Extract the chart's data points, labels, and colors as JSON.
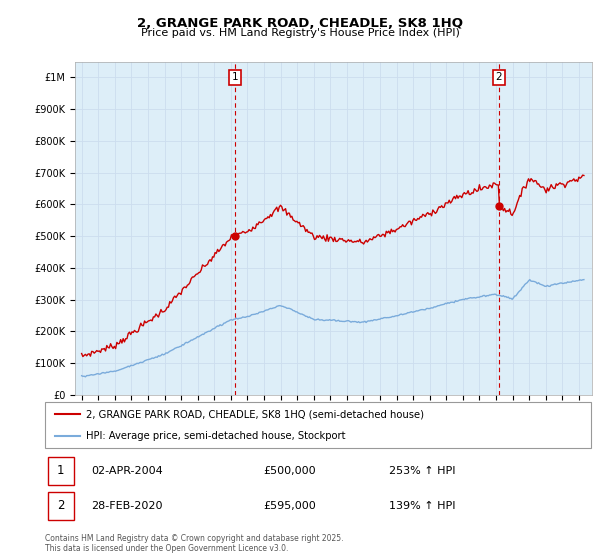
{
  "title": "2, GRANGE PARK ROAD, CHEADLE, SK8 1HQ",
  "subtitle": "Price paid vs. HM Land Registry's House Price Index (HPI)",
  "ytick_values": [
    0,
    100000,
    200000,
    300000,
    400000,
    500000,
    600000,
    700000,
    800000,
    900000,
    1000000
  ],
  "ylim": [
    0,
    1050000
  ],
  "xlim_start": 1994.6,
  "xlim_end": 2025.8,
  "sale1_date": 2004.25,
  "sale1_price": 500000,
  "sale1_label": "1",
  "sale2_date": 2020.17,
  "sale2_price": 595000,
  "sale2_label": "2",
  "hpi_color": "#7aabdb",
  "price_color": "#cc0000",
  "vline_color": "#cc0000",
  "fill_color": "#ddeeff",
  "legend_label_price": "2, GRANGE PARK ROAD, CHEADLE, SK8 1HQ (semi-detached house)",
  "legend_label_hpi": "HPI: Average price, semi-detached house, Stockport",
  "table_rows": [
    {
      "num": "1",
      "date": "02-APR-2004",
      "price": "£500,000",
      "hpi": "253% ↑ HPI"
    },
    {
      "num": "2",
      "date": "28-FEB-2020",
      "price": "£595,000",
      "hpi": "139% ↑ HPI"
    }
  ],
  "footnote": "Contains HM Land Registry data © Crown copyright and database right 2025.\nThis data is licensed under the Open Government Licence v3.0.",
  "background_color": "#ffffff",
  "grid_color": "#ccddee",
  "plot_bg_color": "#ddeef8"
}
